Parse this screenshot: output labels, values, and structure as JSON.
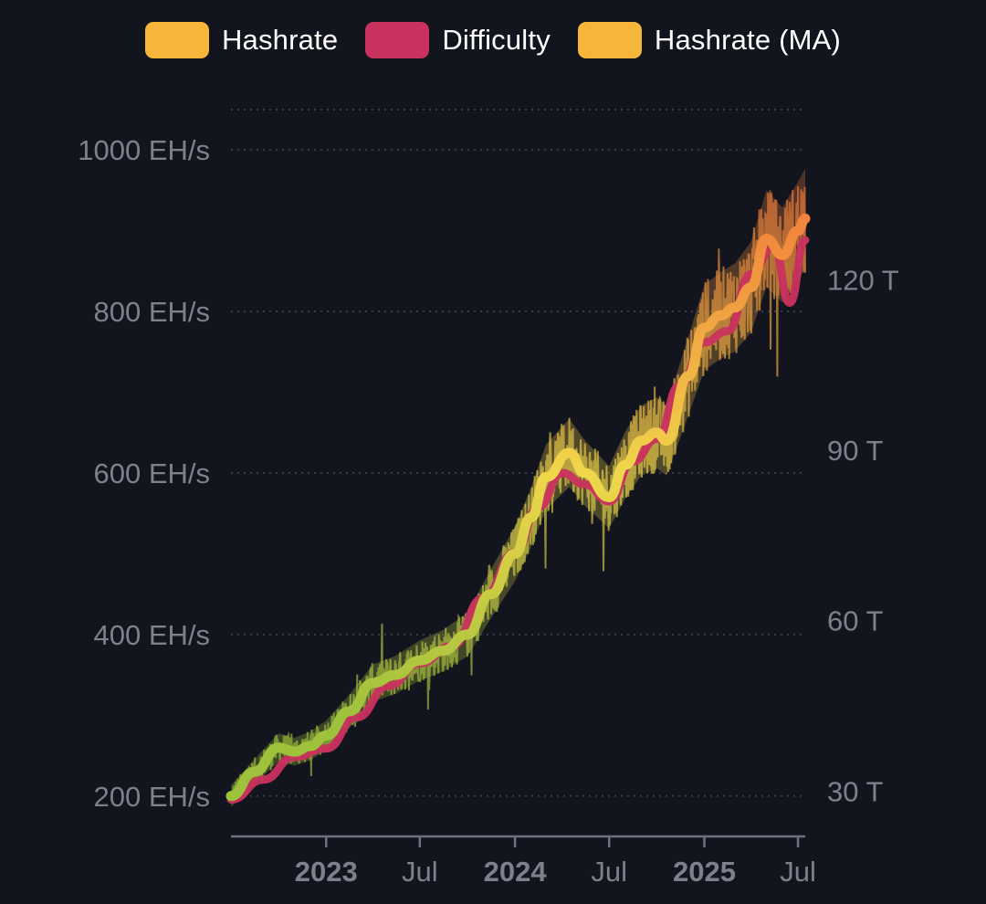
{
  "legend": [
    {
      "label": "Hashrate",
      "color": "#f5b63a"
    },
    {
      "label": "Difficulty",
      "color": "#c9325e"
    },
    {
      "label": "Hashrate (MA)",
      "color": "#f5b63a"
    }
  ],
  "chart_data": {
    "type": "line",
    "title": "",
    "legend_position": "top-center",
    "grid": true,
    "x_range": [
      "2022-07-01",
      "2025-07-15"
    ],
    "x_ticks": [
      {
        "date": "2023-01-01",
        "label": "2023",
        "major": true
      },
      {
        "date": "2023-07-01",
        "label": "Jul",
        "major": false
      },
      {
        "date": "2024-01-01",
        "label": "2024",
        "major": true
      },
      {
        "date": "2024-07-01",
        "label": "Jul",
        "major": false
      },
      {
        "date": "2025-01-01",
        "label": "2025",
        "major": true
      },
      {
        "date": "2025-07-01",
        "label": "Jul",
        "major": false
      }
    ],
    "y_left": {
      "unit": "EH/s",
      "range": [
        150,
        1050
      ],
      "ticks": [
        200,
        400,
        600,
        800,
        1000
      ],
      "tick_labels": [
        "200 EH/s",
        "400 EH/s",
        "600 EH/s",
        "800 EH/s",
        "1000 EH/s"
      ]
    },
    "y_right": {
      "unit": "T",
      "range": [
        22,
        150
      ],
      "ticks": [
        30,
        60,
        90,
        120
      ],
      "tick_labels": [
        "30 T",
        "60 T",
        "90 T",
        "120 T"
      ]
    },
    "color_gradient": {
      "low": "#9fc23c",
      "mid": "#f0d64a",
      "high": "#f27a3a",
      "low_value": 300,
      "mid_value": 600,
      "high_value": 950
    },
    "series": [
      {
        "name": "Hashrate (MA)",
        "axis": "left",
        "points": [
          [
            "2022-07-01",
            200
          ],
          [
            "2022-08-15",
            230
          ],
          [
            "2022-10-01",
            260
          ],
          [
            "2022-11-01",
            255
          ],
          [
            "2022-12-01",
            262
          ],
          [
            "2023-01-01",
            275
          ],
          [
            "2023-02-15",
            305
          ],
          [
            "2023-04-01",
            340
          ],
          [
            "2023-05-15",
            350
          ],
          [
            "2023-07-01",
            368
          ],
          [
            "2023-08-15",
            380
          ],
          [
            "2023-10-01",
            400
          ],
          [
            "2023-11-15",
            450
          ],
          [
            "2024-01-01",
            500
          ],
          [
            "2024-02-01",
            545
          ],
          [
            "2024-03-01",
            595
          ],
          [
            "2024-04-15",
            625
          ],
          [
            "2024-05-15",
            600
          ],
          [
            "2024-07-01",
            570
          ],
          [
            "2024-08-01",
            610
          ],
          [
            "2024-09-01",
            640
          ],
          [
            "2024-10-01",
            650
          ],
          [
            "2024-10-20",
            640
          ],
          [
            "2024-12-01",
            720
          ],
          [
            "2025-01-01",
            780
          ],
          [
            "2025-02-01",
            795
          ],
          [
            "2025-03-01",
            805
          ],
          [
            "2025-04-01",
            830
          ],
          [
            "2025-05-01",
            890
          ],
          [
            "2025-06-01",
            870
          ],
          [
            "2025-07-01",
            900
          ],
          [
            "2025-07-15",
            915
          ]
        ]
      },
      {
        "name": "Difficulty",
        "axis": "right",
        "points": [
          [
            "2022-07-01",
            28.5
          ],
          [
            "2022-09-01",
            32
          ],
          [
            "2022-11-01",
            36
          ],
          [
            "2023-01-01",
            37.5
          ],
          [
            "2023-03-01",
            43
          ],
          [
            "2023-05-01",
            48.5
          ],
          [
            "2023-07-01",
            52.5
          ],
          [
            "2023-09-01",
            55.5
          ],
          [
            "2023-11-01",
            64
          ],
          [
            "2024-01-01",
            72
          ],
          [
            "2024-02-15",
            80
          ],
          [
            "2024-04-01",
            86
          ],
          [
            "2024-05-15",
            84
          ],
          [
            "2024-07-01",
            81
          ],
          [
            "2024-08-15",
            88
          ],
          [
            "2024-10-01",
            92
          ],
          [
            "2024-11-15",
            101.5
          ],
          [
            "2025-01-01",
            109
          ],
          [
            "2025-02-15",
            111
          ],
          [
            "2025-04-01",
            121
          ],
          [
            "2025-05-15",
            126
          ],
          [
            "2025-06-15",
            116
          ],
          [
            "2025-07-15",
            127
          ]
        ]
      },
      {
        "name": "Hashrate",
        "axis": "left",
        "points": [
          [
            "2022-07-01",
            200
          ],
          [
            "2022-10-01",
            262
          ],
          [
            "2023-01-01",
            270
          ],
          [
            "2023-04-01",
            340
          ],
          [
            "2023-07-01",
            365
          ],
          [
            "2023-10-01",
            400
          ],
          [
            "2024-01-01",
            505
          ],
          [
            "2024-04-15",
            630
          ],
          [
            "2024-07-01",
            565
          ],
          [
            "2024-10-01",
            655
          ],
          [
            "2025-01-01",
            790
          ],
          [
            "2025-04-01",
            835
          ],
          [
            "2025-07-01",
            905
          ]
        ]
      }
    ]
  }
}
